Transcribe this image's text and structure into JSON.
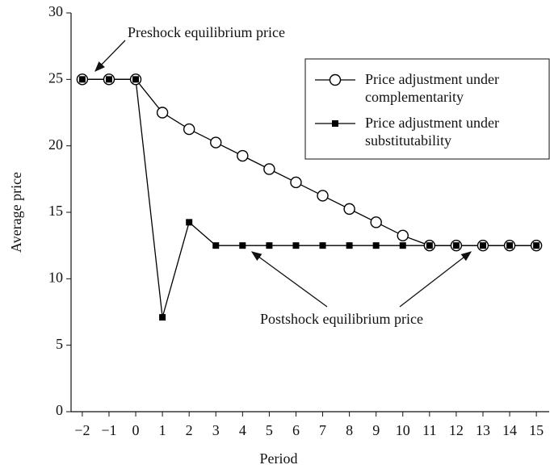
{
  "chart_data": {
    "type": "line",
    "xlabel": "Period",
    "ylabel": "Average price",
    "x": [
      -2,
      -1,
      0,
      1,
      2,
      3,
      4,
      5,
      6,
      7,
      8,
      9,
      10,
      11,
      12,
      13,
      14,
      15
    ],
    "series": [
      {
        "name": "Price adjustment under complementarity",
        "color": "#000000",
        "marker": "circle",
        "values": [
          25,
          25,
          25,
          22.5,
          21.25,
          20.25,
          19.25,
          18.25,
          17.25,
          16.25,
          15.25,
          14.25,
          13.25,
          12.5,
          12.5,
          12.5,
          12.5,
          12.5
        ]
      },
      {
        "name": "Price adjustment under substitutability",
        "color": "#000000",
        "marker": "square",
        "values": [
          25,
          25,
          25,
          7.1,
          14.25,
          12.5,
          12.5,
          12.5,
          12.5,
          12.5,
          12.5,
          12.5,
          12.5,
          12.5,
          12.5,
          12.5,
          12.5,
          12.5
        ]
      }
    ],
    "xlim": [
      -2.42,
      15.48
    ],
    "ylim": [
      0,
      30
    ],
    "xticks": [
      {
        "value": -2,
        "label": "−2"
      },
      {
        "value": -1,
        "label": "−1"
      },
      0,
      1,
      2,
      3,
      4,
      5,
      6,
      7,
      8,
      9,
      10,
      11,
      12,
      13,
      14,
      15
    ],
    "yticks": [
      0,
      5,
      10,
      15,
      20,
      25,
      30
    ],
    "legend": "upper right",
    "annotations": [
      "Preshock equilibrium price",
      "Postshock equilibrium price"
    ]
  }
}
